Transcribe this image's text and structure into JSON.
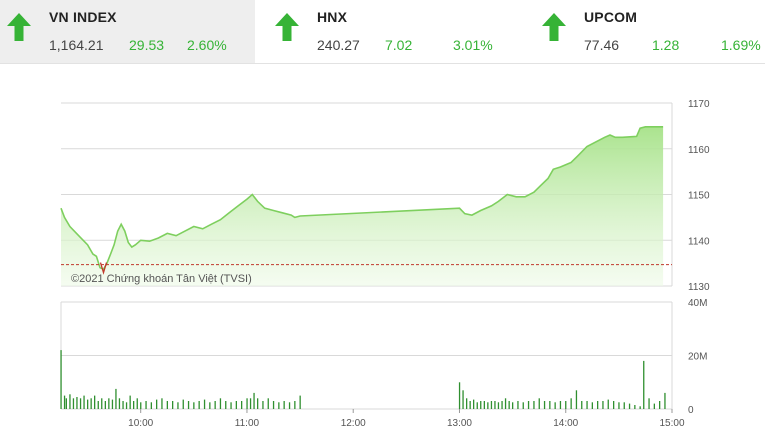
{
  "indices": [
    {
      "name": "VN INDEX",
      "value": "1,164.21",
      "change": "29.53",
      "percent": "2.60%",
      "direction": "up"
    },
    {
      "name": "HNX",
      "value": "240.27",
      "change": "7.02",
      "percent": "3.01%",
      "direction": "up"
    },
    {
      "name": "UPCOM",
      "value": "77.46",
      "change": "1.28",
      "percent": "1.69%",
      "direction": "up"
    }
  ],
  "colors": {
    "up": "#36b336",
    "price_line": "#7ecf5e",
    "area_top": "#a9e38b",
    "volume": "#2f8f2f",
    "reference": "#c0392b"
  },
  "chart_data": {
    "type": "area",
    "copyright": "©2021 Chứng khoán Tân Việt (TVSI)",
    "x_ticks": [
      "10:00",
      "11:00",
      "12:00",
      "13:00",
      "14:00",
      "15:00"
    ],
    "price": {
      "y_ticks": [
        "1130",
        "1140",
        "1150",
        "1160",
        "1170"
      ],
      "ylim": [
        1130,
        1170
      ],
      "reference": 1134.68,
      "points": [
        [
          "09:15",
          1147
        ],
        [
          "09:17",
          1145
        ],
        [
          "09:20",
          1143
        ],
        [
          "09:25",
          1141
        ],
        [
          "09:30",
          1139
        ],
        [
          "09:33",
          1137
        ],
        [
          "09:35",
          1136.5
        ],
        [
          "09:37",
          1134
        ],
        [
          "09:39",
          1133.7
        ],
        [
          "09:41",
          1135
        ],
        [
          "09:43",
          1137
        ],
        [
          "09:45",
          1139
        ],
        [
          "09:47",
          1142
        ],
        [
          "09:49",
          1143.5
        ],
        [
          "09:51",
          1142
        ],
        [
          "09:53",
          1139.5
        ],
        [
          "09:55",
          1138.5
        ],
        [
          "09:57",
          1139
        ],
        [
          "10:00",
          1140
        ],
        [
          "10:05",
          1139.8
        ],
        [
          "10:10",
          1140.5
        ],
        [
          "10:15",
          1141.5
        ],
        [
          "10:20",
          1141
        ],
        [
          "10:25",
          1142
        ],
        [
          "10:30",
          1143
        ],
        [
          "10:35",
          1142.5
        ],
        [
          "10:40",
          1143.5
        ],
        [
          "10:45",
          1144.5
        ],
        [
          "10:50",
          1146
        ],
        [
          "10:55",
          1147.5
        ],
        [
          "11:00",
          1149
        ],
        [
          "11:03",
          1150
        ],
        [
          "11:06",
          1148.5
        ],
        [
          "11:10",
          1147
        ],
        [
          "11:15",
          1146.5
        ],
        [
          "11:20",
          1146
        ],
        [
          "11:25",
          1145.5
        ],
        [
          "11:27",
          1145
        ],
        [
          "11:30",
          1145.3
        ],
        [
          "13:00",
          1147
        ],
        [
          "13:03",
          1145.8
        ],
        [
          "13:07",
          1145.5
        ],
        [
          "13:12",
          1146.5
        ],
        [
          "13:18",
          1147.5
        ],
        [
          "13:22",
          1148.5
        ],
        [
          "13:27",
          1150
        ],
        [
          "13:32",
          1149.5
        ],
        [
          "13:37",
          1149.5
        ],
        [
          "13:42",
          1150.5
        ],
        [
          "13:46",
          1152
        ],
        [
          "13:50",
          1153.5
        ],
        [
          "13:53",
          1155.5
        ],
        [
          "13:57",
          1156
        ],
        [
          "14:00",
          1156.5
        ],
        [
          "14:03",
          1157
        ],
        [
          "14:07",
          1158.5
        ],
        [
          "14:12",
          1160.5
        ],
        [
          "14:17",
          1161.5
        ],
        [
          "14:22",
          1162.5
        ],
        [
          "14:25",
          1163
        ],
        [
          "14:28",
          1162.5
        ],
        [
          "14:32",
          1162.5
        ],
        [
          "14:40",
          1162.7
        ],
        [
          "14:42",
          1164.5
        ],
        [
          "14:45",
          1164.8
        ],
        [
          "14:50",
          1164.8
        ],
        [
          "14:55",
          1164.8
        ]
      ]
    },
    "volume": {
      "y_ticks": [
        "0",
        "20M",
        "40M"
      ],
      "ylim": [
        0,
        40
      ],
      "unit": "M",
      "bars": [
        [
          "09:15",
          22
        ],
        [
          "09:17",
          5
        ],
        [
          "09:18",
          4
        ],
        [
          "09:20",
          5.5
        ],
        [
          "09:22",
          4
        ],
        [
          "09:24",
          4.5
        ],
        [
          "09:26",
          4
        ],
        [
          "09:28",
          5
        ],
        [
          "09:30",
          3.5
        ],
        [
          "09:32",
          4
        ],
        [
          "09:34",
          5
        ],
        [
          "09:36",
          3
        ],
        [
          "09:38",
          4
        ],
        [
          "09:40",
          3
        ],
        [
          "09:42",
          4
        ],
        [
          "09:44",
          3.5
        ],
        [
          "09:46",
          7.5
        ],
        [
          "09:48",
          4
        ],
        [
          "09:50",
          3
        ],
        [
          "09:52",
          2.5
        ],
        [
          "09:54",
          5
        ],
        [
          "09:56",
          3
        ],
        [
          "09:58",
          4
        ],
        [
          "10:00",
          2.5
        ],
        [
          "10:03",
          3
        ],
        [
          "10:06",
          2.5
        ],
        [
          "10:09",
          3.5
        ],
        [
          "10:12",
          4
        ],
        [
          "10:15",
          3
        ],
        [
          "10:18",
          3
        ],
        [
          "10:21",
          2.5
        ],
        [
          "10:24",
          3.5
        ],
        [
          "10:27",
          3
        ],
        [
          "10:30",
          2.5
        ],
        [
          "10:33",
          3
        ],
        [
          "10:36",
          3.5
        ],
        [
          "10:39",
          2.5
        ],
        [
          "10:42",
          3
        ],
        [
          "10:45",
          4
        ],
        [
          "10:48",
          3
        ],
        [
          "10:51",
          2.5
        ],
        [
          "10:54",
          3
        ],
        [
          "10:57",
          3
        ],
        [
          "11:00",
          4
        ],
        [
          "11:02",
          4
        ],
        [
          "11:04",
          6
        ],
        [
          "11:06",
          4
        ],
        [
          "11:09",
          3
        ],
        [
          "11:12",
          4
        ],
        [
          "11:15",
          3
        ],
        [
          "11:18",
          2.5
        ],
        [
          "11:21",
          3
        ],
        [
          "11:24",
          2.5
        ],
        [
          "11:27",
          3
        ],
        [
          "11:30",
          5
        ],
        [
          "13:00",
          10
        ],
        [
          "13:02",
          7
        ],
        [
          "13:04",
          4
        ],
        [
          "13:06",
          3
        ],
        [
          "13:08",
          3.5
        ],
        [
          "13:10",
          2.5
        ],
        [
          "13:12",
          3
        ],
        [
          "13:14",
          3
        ],
        [
          "13:16",
          2.5
        ],
        [
          "13:18",
          3
        ],
        [
          "13:20",
          3
        ],
        [
          "13:22",
          2.5
        ],
        [
          "13:24",
          3
        ],
        [
          "13:26",
          4
        ],
        [
          "13:28",
          3
        ],
        [
          "13:30",
          2.5
        ],
        [
          "13:33",
          3
        ],
        [
          "13:36",
          2.5
        ],
        [
          "13:39",
          3
        ],
        [
          "13:42",
          3
        ],
        [
          "13:45",
          4
        ],
        [
          "13:48",
          3
        ],
        [
          "13:51",
          3
        ],
        [
          "13:54",
          2.5
        ],
        [
          "13:57",
          3
        ],
        [
          "14:00",
          3
        ],
        [
          "14:03",
          4
        ],
        [
          "14:06",
          7
        ],
        [
          "14:09",
          3
        ],
        [
          "14:12",
          3
        ],
        [
          "14:15",
          2.5
        ],
        [
          "14:18",
          3
        ],
        [
          "14:21",
          3
        ],
        [
          "14:24",
          3.5
        ],
        [
          "14:27",
          3
        ],
        [
          "14:30",
          2.5
        ],
        [
          "14:33",
          2.5
        ],
        [
          "14:36",
          2
        ],
        [
          "14:39",
          1.5
        ],
        [
          "14:42",
          1
        ],
        [
          "14:44",
          18
        ],
        [
          "14:47",
          4
        ],
        [
          "14:50",
          2
        ],
        [
          "14:53",
          3
        ],
        [
          "14:56",
          6
        ]
      ]
    }
  }
}
